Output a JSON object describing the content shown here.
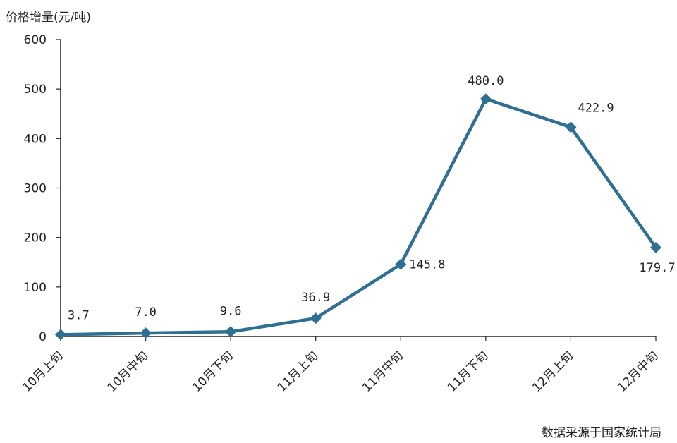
{
  "chart_data": {
    "type": "line",
    "ylabel": "价格增量(元/吨)",
    "xlabel": "",
    "categories": [
      "10月上旬",
      "10月中旬",
      "10月下旬",
      "11月上旬",
      "11月中旬",
      "11月下旬",
      "12月上旬",
      "12月中旬"
    ],
    "values": [
      3.7,
      7.0,
      9.6,
      36.9,
      145.8,
      480.0,
      422.9,
      179.7
    ],
    "data_labels": [
      "3.7",
      "7.0",
      "9.6",
      "36.9",
      "145.8",
      "480.0",
      "422.9",
      "179.7"
    ],
    "ylim": [
      0,
      600
    ],
    "yticks": [
      0,
      100,
      200,
      300,
      400,
      500,
      600
    ],
    "ytick_labels": [
      "0",
      "100",
      "200",
      "300",
      "400",
      "500",
      "600"
    ],
    "grid": false,
    "legend": "none",
    "source_note": "数据采源于国家统计局",
    "line_color": "#2e6f93",
    "marker_color": "#2e6f93",
    "marker": "diamond"
  }
}
